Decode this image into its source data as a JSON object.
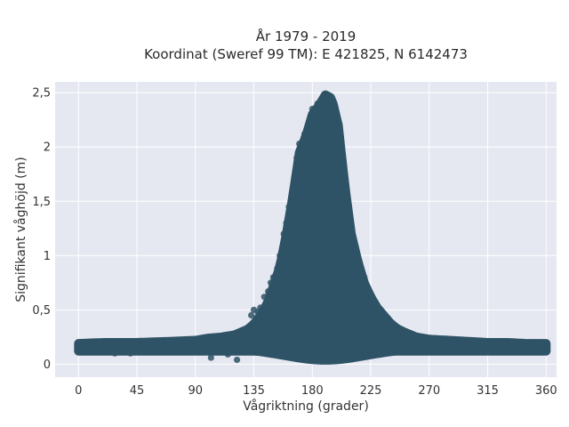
{
  "chart_data": {
    "type": "scatter",
    "title": "År 1979 - 2019",
    "subtitle": "Koordinat (Sweref 99 TM): E 421825, N 6142473",
    "xlabel": "Vågriktning (grader)",
    "ylabel": "Signifikant våghöjd (m)",
    "xlim": [
      -18,
      368
    ],
    "ylim": [
      -0.12,
      2.6
    ],
    "xticks": [
      0,
      45,
      90,
      135,
      180,
      225,
      270,
      315,
      360
    ],
    "xtick_labels": [
      "0",
      "45",
      "90",
      "135",
      "180",
      "225",
      "270",
      "315",
      "360"
    ],
    "yticks": [
      0,
      0.5,
      1,
      1.5,
      2,
      2.5
    ],
    "ytick_labels": [
      "0",
      "0,5",
      "1",
      "1,5",
      "2",
      "2,5"
    ],
    "grid": true,
    "legend": "none",
    "colors": {
      "marker": "#2f5366",
      "plot_background": "#e5e8f0",
      "grid": "#ffffff",
      "page_background": "#ffffff"
    },
    "envelope": {
      "description_values": "upper edge of point cloud (degrees, metres)",
      "x": [
        0,
        20,
        45,
        70,
        90,
        100,
        110,
        120,
        130,
        135,
        140,
        145,
        150,
        155,
        160,
        165,
        170,
        175,
        180,
        185,
        190,
        195,
        200,
        205,
        210,
        215,
        220,
        225,
        230,
        235,
        240,
        245,
        250,
        260,
        270,
        285,
        300,
        315,
        330,
        345,
        360
      ],
      "y": [
        0.19,
        0.2,
        0.2,
        0.21,
        0.22,
        0.24,
        0.25,
        0.27,
        0.32,
        0.37,
        0.45,
        0.55,
        0.72,
        0.9,
        1.2,
        1.55,
        1.95,
        2.1,
        2.3,
        2.38,
        2.48,
        2.45,
        2.2,
        1.65,
        1.2,
        0.95,
        0.75,
        0.62,
        0.52,
        0.45,
        0.38,
        0.33,
        0.3,
        0.25,
        0.23,
        0.22,
        0.21,
        0.2,
        0.2,
        0.19,
        0.19
      ]
    },
    "points": [
      [
        0,
        0.17
      ],
      [
        0,
        0.14
      ],
      [
        3,
        0.12
      ],
      [
        7,
        0.16
      ],
      [
        12,
        0.18
      ],
      [
        18,
        0.13
      ],
      [
        22,
        0.17
      ],
      [
        28,
        0.1
      ],
      [
        30,
        0.19
      ],
      [
        35,
        0.15
      ],
      [
        40,
        0.1
      ],
      [
        45,
        0.17
      ],
      [
        48,
        0.2
      ],
      [
        52,
        0.12
      ],
      [
        58,
        0.16
      ],
      [
        62,
        0.19
      ],
      [
        68,
        0.14
      ],
      [
        72,
        0.18
      ],
      [
        78,
        0.2
      ],
      [
        82,
        0.13
      ],
      [
        86,
        0.21
      ],
      [
        90,
        0.18
      ],
      [
        95,
        0.15
      ],
      [
        98,
        0.22
      ],
      [
        102,
        0.06
      ],
      [
        105,
        0.2
      ],
      [
        108,
        0.12
      ],
      [
        112,
        0.24
      ],
      [
        115,
        0.09
      ],
      [
        118,
        0.23
      ],
      [
        122,
        0.04
      ],
      [
        126,
        0.26
      ],
      [
        130,
        0.32
      ],
      [
        133,
        0.45
      ],
      [
        135,
        0.5
      ],
      [
        138,
        0.48
      ],
      [
        140,
        0.52
      ],
      [
        143,
        0.62
      ],
      [
        146,
        0.67
      ],
      [
        148,
        0.75
      ],
      [
        150,
        0.8
      ],
      [
        153,
        0.88
      ],
      [
        155,
        1.0
      ],
      [
        158,
        1.2
      ],
      [
        160,
        1.3
      ],
      [
        162,
        1.45
      ],
      [
        165,
        1.62
      ],
      [
        168,
        1.9
      ],
      [
        170,
        2.03
      ],
      [
        172,
        2.0
      ],
      [
        174,
        2.12
      ],
      [
        176,
        2.05
      ],
      [
        178,
        2.25
      ],
      [
        180,
        2.35
      ],
      [
        182,
        2.3
      ],
      [
        184,
        2.4
      ],
      [
        186,
        2.38
      ],
      [
        188,
        2.44
      ],
      [
        190,
        2.48
      ],
      [
        192,
        2.45
      ],
      [
        194,
        2.42
      ],
      [
        196,
        2.35
      ],
      [
        198,
        2.25
      ],
      [
        200,
        2.1
      ],
      [
        202,
        1.85
      ],
      [
        204,
        1.7
      ],
      [
        206,
        1.45
      ],
      [
        208,
        1.3
      ],
      [
        210,
        1.15
      ],
      [
        212,
        1.1
      ],
      [
        214,
        1.0
      ],
      [
        216,
        0.92
      ],
      [
        220,
        0.8
      ],
      [
        222,
        0.72
      ],
      [
        225,
        0.65
      ],
      [
        228,
        0.55
      ],
      [
        230,
        0.52
      ],
      [
        232,
        0.5
      ],
      [
        235,
        0.42
      ],
      [
        238,
        0.4
      ],
      [
        240,
        0.34
      ],
      [
        243,
        0.3
      ],
      [
        246,
        0.32
      ],
      [
        250,
        0.28
      ],
      [
        255,
        0.26
      ],
      [
        260,
        0.25
      ],
      [
        265,
        0.22
      ],
      [
        270,
        0.21
      ],
      [
        278,
        0.23
      ],
      [
        285,
        0.22
      ],
      [
        292,
        0.19
      ],
      [
        300,
        0.2
      ],
      [
        305,
        0.12
      ],
      [
        310,
        0.17
      ],
      [
        315,
        0.2
      ],
      [
        322,
        0.15
      ],
      [
        328,
        0.19
      ],
      [
        333,
        0.12
      ],
      [
        338,
        0.18
      ],
      [
        345,
        0.16
      ],
      [
        350,
        0.2
      ],
      [
        355,
        0.14
      ],
      [
        360,
        0.18
      ],
      [
        360,
        0.13
      ]
    ]
  }
}
